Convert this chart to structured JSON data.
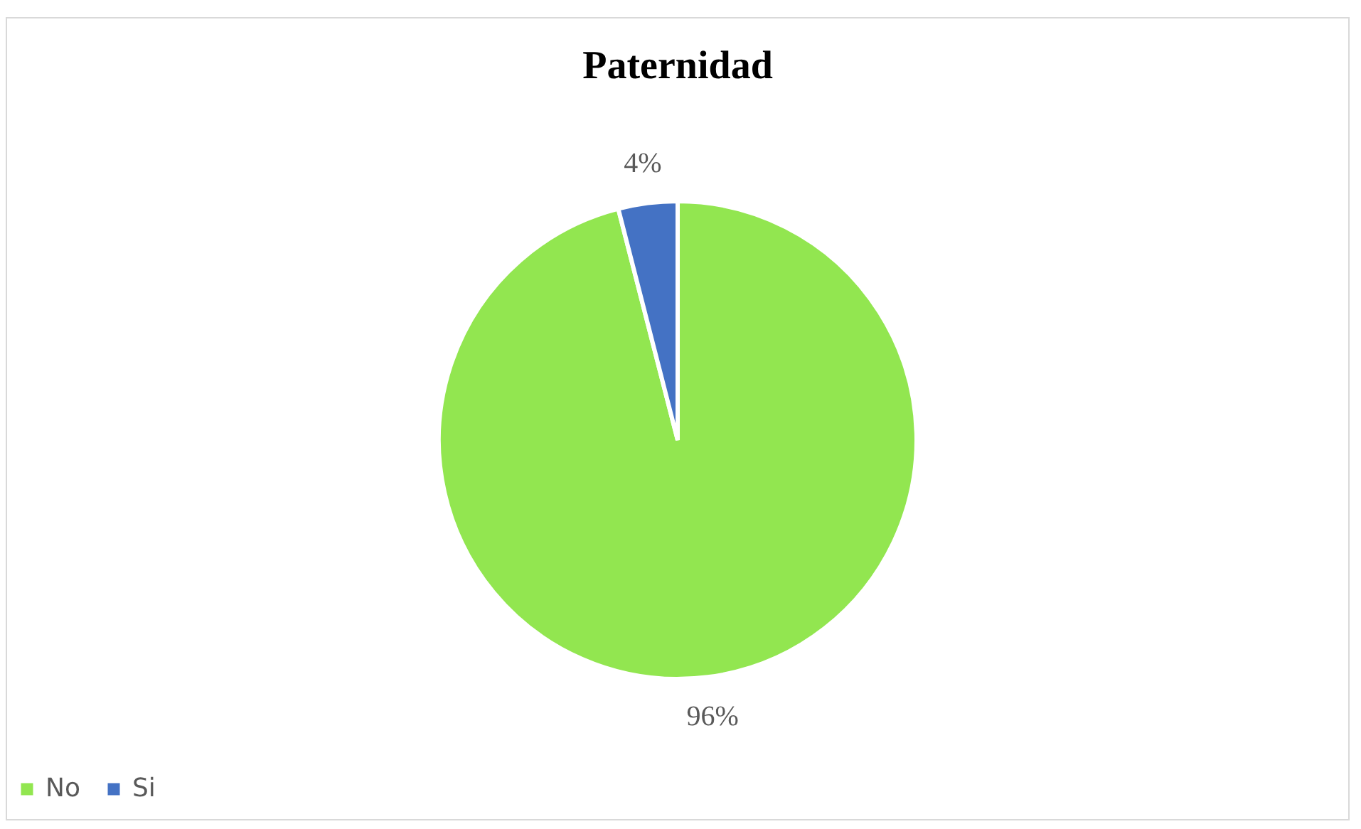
{
  "chart_data": {
    "type": "pie",
    "title": "Paternidad",
    "categories": [
      "No",
      "Si"
    ],
    "values": [
      96,
      4
    ],
    "value_labels": [
      "96%",
      "4%"
    ],
    "colors": [
      "#92e650",
      "#4472c4"
    ],
    "legend": "bottom"
  }
}
